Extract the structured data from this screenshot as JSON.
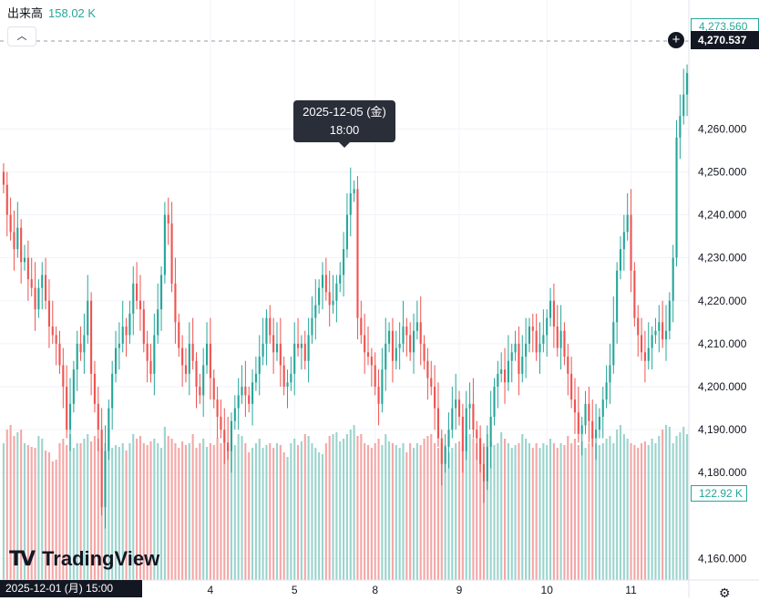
{
  "legend": {
    "label": "出来高",
    "value": "158.02 K"
  },
  "tooltip": {
    "date": "2025-12-05 (金)",
    "time": "18:00"
  },
  "crosshair_time": "2025-12-01 (月)   15:00",
  "current_price": "4,270.537",
  "last_price": "4,273.560",
  "volume_value": "122.92 K",
  "brand": "TradingView",
  "colors": {
    "up": "#26a69a",
    "down": "#ef5350",
    "up_vol": "#9bd4cd",
    "down_vol": "#f4a7a6"
  },
  "chart_data": {
    "type": "candlestick",
    "ylim": [
      4155,
      4290
    ],
    "yticks": [
      {
        "value": 4160,
        "label": "4,160.000"
      },
      {
        "value": 4180,
        "label": "4,180.000"
      },
      {
        "value": 4190,
        "label": "4,190.000"
      },
      {
        "value": 4200,
        "label": "4,200.000"
      },
      {
        "value": 4210,
        "label": "4,210.000"
      },
      {
        "value": 4220,
        "label": "4,220.000"
      },
      {
        "value": 4230,
        "label": "4,230.000"
      },
      {
        "value": 4240,
        "label": "4,240.000"
      },
      {
        "value": 4250,
        "label": "4,250.000"
      },
      {
        "value": 4260,
        "label": "4,260.000"
      }
    ],
    "xticks": [
      {
        "bar": 59,
        "label": "4"
      },
      {
        "bar": 83,
        "label": "5"
      },
      {
        "bar": 106,
        "label": "8"
      },
      {
        "bar": 130,
        "label": "9"
      },
      {
        "bar": 155,
        "label": "10"
      },
      {
        "bar": 179,
        "label": "11"
      }
    ],
    "close": [
      4247,
      4240,
      4236,
      4232,
      4237,
      4229,
      4230,
      4225,
      4223,
      4218,
      4223,
      4226,
      4220,
      4214,
      4212,
      4210,
      4205,
      4200,
      4190,
      4196,
      4204,
      4210,
      4208,
      4212,
      4220,
      4203,
      4196,
      4190,
      4172,
      4185,
      4195,
      4203,
      4209,
      4210,
      4214,
      4212,
      4217,
      4224,
      4220,
      4218,
      4210,
      4206,
      4203,
      4212,
      4218,
      4226,
      4240,
      4238,
      4224,
      4215,
      4209,
      4205,
      4203,
      4210,
      4206,
      4200,
      4198,
      4205,
      4210,
      4202,
      4197,
      4193,
      4190,
      4187,
      4185,
      4192,
      4195,
      4198,
      4200,
      4198,
      4196,
      4201,
      4203,
      4207,
      4210,
      4216,
      4212,
      4208,
      4210,
      4205,
      4200,
      4201,
      4203,
      4210,
      4209,
      4210,
      4206,
      4212,
      4216,
      4219,
      4223,
      4226,
      4222,
      4219,
      4220,
      4224,
      4226,
      4232,
      4240,
      4245,
      4246,
      4216,
      4212,
      4208,
      4207,
      4205,
      4200,
      4196,
      4204,
      4210,
      4213,
      4206,
      4209,
      4210,
      4214,
      4212,
      4208,
      4213,
      4215,
      4210,
      4206,
      4202,
      4200,
      4195,
      4188,
      4182,
      4186,
      4190,
      4195,
      4197,
      4193,
      4185,
      4195,
      4196,
      4190,
      4188,
      4182,
      4178,
      4186,
      4193,
      4200,
      4203,
      4204,
      4201,
      4206,
      4208,
      4210,
      4203,
      4207,
      4210,
      4214,
      4213,
      4208,
      4210,
      4212,
      4216,
      4220,
      4214,
      4209,
      4213,
      4207,
      4203,
      4197,
      4194,
      4189,
      4191,
      4196,
      4192,
      4188,
      4190,
      4193,
      4197,
      4201,
      4205,
      4215,
      4227,
      4232,
      4236,
      4240,
      4227,
      4216,
      4212,
      4208,
      4206,
      4209,
      4212,
      4213,
      4215,
      4211,
      4213,
      4220,
      4230,
      4258,
      4263,
      4268,
      4273
    ],
    "volume": [
      150,
      165,
      170,
      158,
      162,
      165,
      150,
      148,
      146,
      145,
      158,
      155,
      142,
      140,
      130,
      132,
      150,
      155,
      148,
      160,
      145,
      150,
      150,
      155,
      160,
      152,
      158,
      155,
      145,
      150,
      165,
      145,
      148,
      146,
      150,
      142,
      150,
      160,
      155,
      158,
      150,
      148,
      152,
      155,
      150,
      145,
      168,
      158,
      155,
      150,
      145,
      152,
      148,
      150,
      160,
      145,
      150,
      155,
      146,
      150,
      148,
      156,
      150,
      155,
      145,
      150,
      148,
      160,
      158,
      150,
      140,
      145,
      150,
      155,
      145,
      148,
      150,
      145,
      150,
      148,
      140,
      135,
      150,
      155,
      148,
      152,
      160,
      158,
      150,
      145,
      140,
      138,
      150,
      158,
      160,
      162,
      152,
      155,
      160,
      165,
      170,
      158,
      160,
      150,
      148,
      145,
      150,
      155,
      148,
      160,
      152,
      150,
      148,
      145,
      150,
      140,
      150,
      145,
      150,
      148,
      155,
      158,
      160,
      150,
      145,
      150,
      148,
      140,
      145,
      150,
      152,
      148,
      158,
      160,
      155,
      150,
      145,
      150,
      160,
      152,
      148,
      150,
      162,
      155,
      150,
      145,
      148,
      150,
      160,
      155,
      150,
      145,
      150,
      145,
      150,
      148,
      155,
      150,
      145,
      150,
      148,
      158,
      150,
      155,
      148,
      152,
      145,
      150,
      160,
      150,
      148,
      150,
      155,
      158,
      150,
      165,
      170,
      160,
      155,
      150,
      148,
      145,
      150,
      152,
      148,
      155,
      150,
      158,
      165,
      170,
      168,
      150,
      158,
      162,
      168,
      160
    ]
  }
}
